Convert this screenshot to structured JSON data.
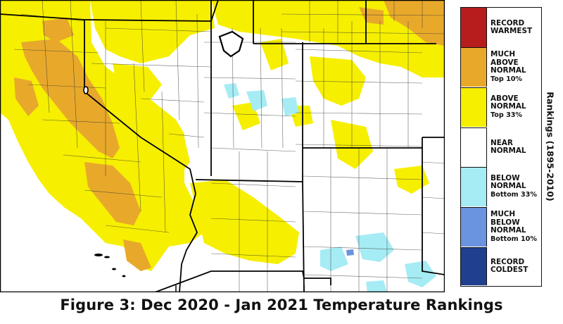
{
  "caption": "Figure 3: Dec 2020 - Jan 2021 Temperature Rankings",
  "legend_title": "Rankings (1895-2010)",
  "legend": [
    {
      "lines": [
        "RECORD",
        "WARMEST"
      ],
      "color": "#b81d1d"
    },
    {
      "lines": [
        "MUCH",
        "ABOVE",
        "NORMAL",
        "Top 10%"
      ],
      "color": "#e8a92b"
    },
    {
      "lines": [
        "ABOVE",
        "NORMAL",
        "Top 33%"
      ],
      "color": "#f6ef00"
    },
    {
      "lines": [
        "NEAR",
        "NORMAL"
      ],
      "color": "#ffffff"
    },
    {
      "lines": [
        "BELOW",
        "NORMAL",
        "Bottom 33%"
      ],
      "color": "#a6ecf4"
    },
    {
      "lines": [
        "MUCH",
        "BELOW",
        "NORMAL",
        "Bottom 10%"
      ],
      "color": "#6a93e0"
    },
    {
      "lines": [
        "RECORD",
        "COLDEST"
      ],
      "color": "#1f3f8f"
    }
  ],
  "colors": {
    "much_above": "#e8a92b",
    "above": "#f6ef00",
    "near": "#ffffff",
    "below": "#a6ecf4",
    "much_below": "#6a93e0",
    "county_line": "#333333",
    "state_line": "#000000"
  }
}
